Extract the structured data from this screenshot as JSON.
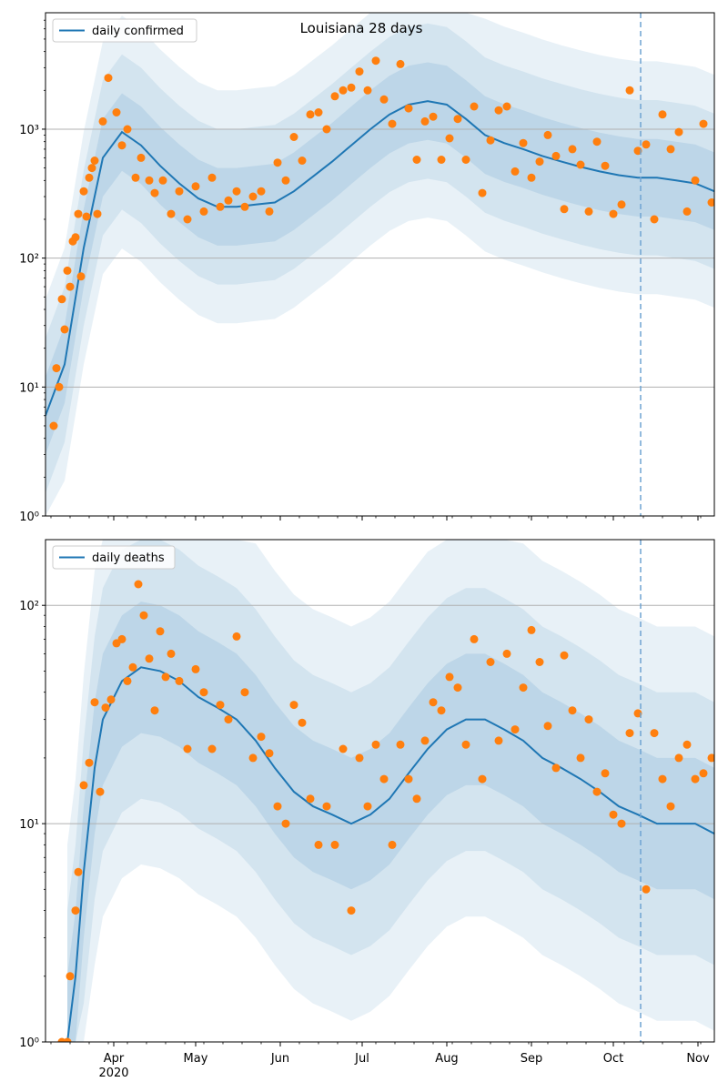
{
  "figure": {
    "title": "Louisiana 28 days"
  },
  "colors": {
    "band": "#1f77b4",
    "model_line": "#1f77b4",
    "observed": "#ff7f0e",
    "grid": "#b0b0b0",
    "cutoff": "#6fa3d2"
  },
  "x_axis": {
    "months": [
      "Apr",
      "May",
      "Jun",
      "Jul",
      "Aug",
      "Sep",
      "Oct",
      "Nov"
    ],
    "month_start_dates": [
      "2020-04-01",
      "2020-05-01",
      "2020-06-01",
      "2020-07-01",
      "2020-08-01",
      "2020-09-01",
      "2020-10-01",
      "2020-11-01"
    ],
    "year_label": "2020",
    "range": [
      "2020-03-07",
      "2020-11-07"
    ],
    "cutoff_date": "2020-10-11"
  },
  "chart_data": [
    {
      "type": "line",
      "panel": "top",
      "legend": "daily confirmed",
      "legend_position": "top-left",
      "y_scale": "log",
      "ylim": [
        1,
        8000
      ],
      "y_ticks": [
        1,
        10,
        100,
        1000
      ],
      "y_tick_labels": [
        "10⁰",
        "10¹",
        "10²",
        "10³"
      ],
      "grid": "horizontal",
      "model_median": {
        "dates": [
          "2020-03-07",
          "2020-03-14",
          "2020-03-21",
          "2020-03-28",
          "2020-04-04",
          "2020-04-11",
          "2020-04-18",
          "2020-04-25",
          "2020-05-02",
          "2020-05-09",
          "2020-05-16",
          "2020-05-23",
          "2020-05-30",
          "2020-06-06",
          "2020-06-13",
          "2020-06-20",
          "2020-06-27",
          "2020-07-04",
          "2020-07-11",
          "2020-07-18",
          "2020-07-25",
          "2020-08-01",
          "2020-08-08",
          "2020-08-15",
          "2020-08-22",
          "2020-08-29",
          "2020-09-05",
          "2020-09-12",
          "2020-09-19",
          "2020-09-26",
          "2020-10-03",
          "2020-10-10",
          "2020-10-17",
          "2020-10-24",
          "2020-10-31",
          "2020-11-07"
        ],
        "values": [
          6,
          15,
          120,
          600,
          950,
          750,
          520,
          380,
          290,
          250,
          250,
          260,
          270,
          330,
          430,
          560,
          750,
          1000,
          1300,
          1550,
          1650,
          1550,
          1200,
          900,
          780,
          700,
          620,
          560,
          510,
          470,
          440,
          420,
          420,
          400,
          380,
          330
        ]
      },
      "observed": {
        "dates": [
          "2020-03-10",
          "2020-03-11",
          "2020-03-12",
          "2020-03-13",
          "2020-03-14",
          "2020-03-15",
          "2020-03-16",
          "2020-03-17",
          "2020-03-18",
          "2020-03-19",
          "2020-03-20",
          "2020-03-21",
          "2020-03-22",
          "2020-03-23",
          "2020-03-24",
          "2020-03-25",
          "2020-03-26",
          "2020-03-28",
          "2020-03-30",
          "2020-04-02",
          "2020-04-04",
          "2020-04-06",
          "2020-04-09",
          "2020-04-11",
          "2020-04-14",
          "2020-04-16",
          "2020-04-19",
          "2020-04-22",
          "2020-04-25",
          "2020-04-28",
          "2020-05-01",
          "2020-05-04",
          "2020-05-07",
          "2020-05-10",
          "2020-05-13",
          "2020-05-16",
          "2020-05-19",
          "2020-05-22",
          "2020-05-25",
          "2020-05-28",
          "2020-05-31",
          "2020-06-03",
          "2020-06-06",
          "2020-06-09",
          "2020-06-12",
          "2020-06-15",
          "2020-06-18",
          "2020-06-21",
          "2020-06-24",
          "2020-06-27",
          "2020-06-30",
          "2020-07-03",
          "2020-07-06",
          "2020-07-09",
          "2020-07-12",
          "2020-07-15",
          "2020-07-18",
          "2020-07-21",
          "2020-07-24",
          "2020-07-27",
          "2020-07-30",
          "2020-08-02",
          "2020-08-05",
          "2020-08-08",
          "2020-08-11",
          "2020-08-14",
          "2020-08-17",
          "2020-08-20",
          "2020-08-23",
          "2020-08-26",
          "2020-08-29",
          "2020-09-01",
          "2020-09-04",
          "2020-09-07",
          "2020-09-10",
          "2020-09-13",
          "2020-09-16",
          "2020-09-19",
          "2020-09-22",
          "2020-09-25",
          "2020-09-28",
          "2020-10-01",
          "2020-10-04",
          "2020-10-07",
          "2020-10-10",
          "2020-10-13",
          "2020-10-16",
          "2020-10-19",
          "2020-10-22",
          "2020-10-25",
          "2020-10-28",
          "2020-10-31",
          "2020-11-03",
          "2020-11-06"
        ],
        "values": [
          5,
          14,
          10,
          48,
          28,
          80,
          60,
          135,
          145,
          220,
          72,
          330,
          210,
          420,
          500,
          570,
          220,
          1150,
          2500,
          1350,
          750,
          1000,
          420,
          600,
          400,
          320,
          400,
          220,
          330,
          200,
          360,
          230,
          420,
          250,
          280,
          330,
          250,
          300,
          330,
          230,
          550,
          400,
          870,
          570,
          1300,
          1350,
          1000,
          1800,
          2000,
          2100,
          2800,
          2000,
          3400,
          1700,
          1100,
          3200,
          1450,
          580,
          1150,
          1250,
          580,
          850,
          1200,
          580,
          1500,
          320,
          820,
          1400,
          1500,
          470,
          780,
          420,
          560,
          900,
          620,
          240,
          700,
          530,
          230,
          800,
          520,
          220,
          260,
          2000,
          680,
          760,
          200,
          1300,
          700,
          950,
          230,
          400,
          1100,
          270
        ]
      }
    },
    {
      "type": "line",
      "panel": "bottom",
      "legend": "daily deaths",
      "legend_position": "top-left",
      "y_scale": "log",
      "ylim": [
        1,
        200
      ],
      "y_ticks": [
        1,
        10,
        100
      ],
      "y_tick_labels": [
        "10⁰",
        "10¹",
        "10²"
      ],
      "grid": "horizontal",
      "model_median": {
        "dates": [
          "2020-03-15",
          "2020-03-18",
          "2020-03-21",
          "2020-03-25",
          "2020-03-28",
          "2020-04-04",
          "2020-04-11",
          "2020-04-18",
          "2020-04-25",
          "2020-05-02",
          "2020-05-09",
          "2020-05-16",
          "2020-05-23",
          "2020-05-30",
          "2020-06-06",
          "2020-06-13",
          "2020-06-20",
          "2020-06-27",
          "2020-07-04",
          "2020-07-11",
          "2020-07-18",
          "2020-07-25",
          "2020-08-01",
          "2020-08-08",
          "2020-08-15",
          "2020-08-22",
          "2020-08-29",
          "2020-09-05",
          "2020-09-12",
          "2020-09-19",
          "2020-09-26",
          "2020-10-03",
          "2020-10-10",
          "2020-10-17",
          "2020-10-24",
          "2020-10-31",
          "2020-11-07"
        ],
        "values": [
          1,
          2,
          6,
          18,
          30,
          45,
          52,
          50,
          45,
          38,
          34,
          30,
          24,
          18,
          14,
          12,
          11,
          10,
          11,
          13,
          17,
          22,
          27,
          30,
          30,
          27,
          24,
          20,
          18,
          16,
          14,
          12,
          11,
          10,
          10,
          10,
          9
        ]
      },
      "observed": {
        "dates": [
          "2020-03-13",
          "2020-03-15",
          "2020-03-16",
          "2020-03-18",
          "2020-03-19",
          "2020-03-21",
          "2020-03-23",
          "2020-03-25",
          "2020-03-27",
          "2020-03-29",
          "2020-03-31",
          "2020-04-02",
          "2020-04-04",
          "2020-04-06",
          "2020-04-08",
          "2020-04-10",
          "2020-04-12",
          "2020-04-14",
          "2020-04-16",
          "2020-04-18",
          "2020-04-20",
          "2020-04-22",
          "2020-04-25",
          "2020-04-28",
          "2020-05-01",
          "2020-05-04",
          "2020-05-07",
          "2020-05-10",
          "2020-05-13",
          "2020-05-16",
          "2020-05-19",
          "2020-05-22",
          "2020-05-25",
          "2020-05-28",
          "2020-05-31",
          "2020-06-03",
          "2020-06-06",
          "2020-06-09",
          "2020-06-12",
          "2020-06-15",
          "2020-06-18",
          "2020-06-21",
          "2020-06-24",
          "2020-06-27",
          "2020-06-30",
          "2020-07-03",
          "2020-07-06",
          "2020-07-09",
          "2020-07-12",
          "2020-07-15",
          "2020-07-18",
          "2020-07-21",
          "2020-07-24",
          "2020-07-27",
          "2020-07-30",
          "2020-08-02",
          "2020-08-05",
          "2020-08-08",
          "2020-08-11",
          "2020-08-14",
          "2020-08-17",
          "2020-08-20",
          "2020-08-23",
          "2020-08-26",
          "2020-08-29",
          "2020-09-01",
          "2020-09-04",
          "2020-09-07",
          "2020-09-10",
          "2020-09-13",
          "2020-09-16",
          "2020-09-19",
          "2020-09-22",
          "2020-09-25",
          "2020-09-28",
          "2020-10-01",
          "2020-10-04",
          "2020-10-07",
          "2020-10-10",
          "2020-10-13",
          "2020-10-16",
          "2020-10-19",
          "2020-10-22",
          "2020-10-25",
          "2020-10-28",
          "2020-10-31",
          "2020-11-03",
          "2020-11-06"
        ],
        "values": [
          1,
          1,
          2,
          4,
          6,
          15,
          19,
          36,
          14,
          34,
          37,
          67,
          70,
          45,
          52,
          125,
          90,
          57,
          33,
          76,
          47,
          60,
          45,
          22,
          51,
          40,
          22,
          35,
          30,
          72,
          40,
          20,
          25,
          21,
          12,
          10,
          35,
          29,
          13,
          8,
          12,
          8,
          22,
          4,
          20,
          12,
          23,
          16,
          8,
          23,
          16,
          13,
          24,
          36,
          33,
          47,
          42,
          23,
          70,
          16,
          55,
          24,
          60,
          27,
          42,
          77,
          55,
          28,
          18,
          59,
          33,
          20,
          30,
          14,
          17,
          11,
          10,
          26,
          32,
          5,
          26,
          16,
          12,
          20,
          23,
          16,
          17,
          20
        ]
      }
    }
  ]
}
